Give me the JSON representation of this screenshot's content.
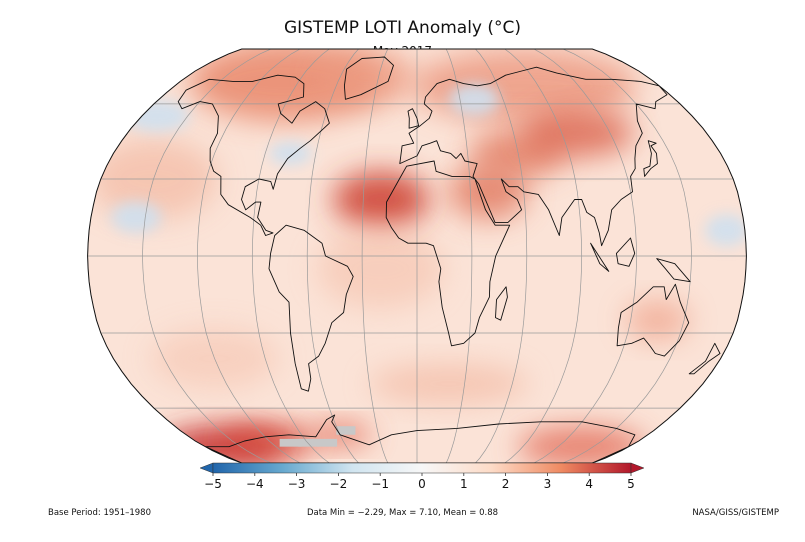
{
  "title": "GISTEMP LOTI Anomaly (°C)",
  "subtitle": "May 2017",
  "colorbar": {
    "ticks": [
      "−5",
      "−4",
      "−3",
      "−2",
      "−1",
      "0",
      "1",
      "2",
      "3",
      "4",
      "5"
    ],
    "min": -5,
    "max": 5,
    "colors": [
      "#2166ac",
      "#67a9cf",
      "#d1e5f0",
      "#f7f7f7",
      "#fddbc7",
      "#ef8a62",
      "#b2182b"
    ]
  },
  "footer": {
    "base_period": "Base Period: 1951–1980",
    "stats": "Data Min = −2.29, Max = 7.10, Mean = 0.88",
    "credit": "NASA/GISS/GISTEMP"
  },
  "map": {
    "projection": "robinson",
    "ocean_color": "#fbe3d7",
    "land_outline_color": "#111111",
    "gridline_color": "#9a9a9a",
    "hotspot_color": "#d24b3c",
    "cold_color": "#cfe0ef",
    "missing_color": "#c8c8c8"
  }
}
